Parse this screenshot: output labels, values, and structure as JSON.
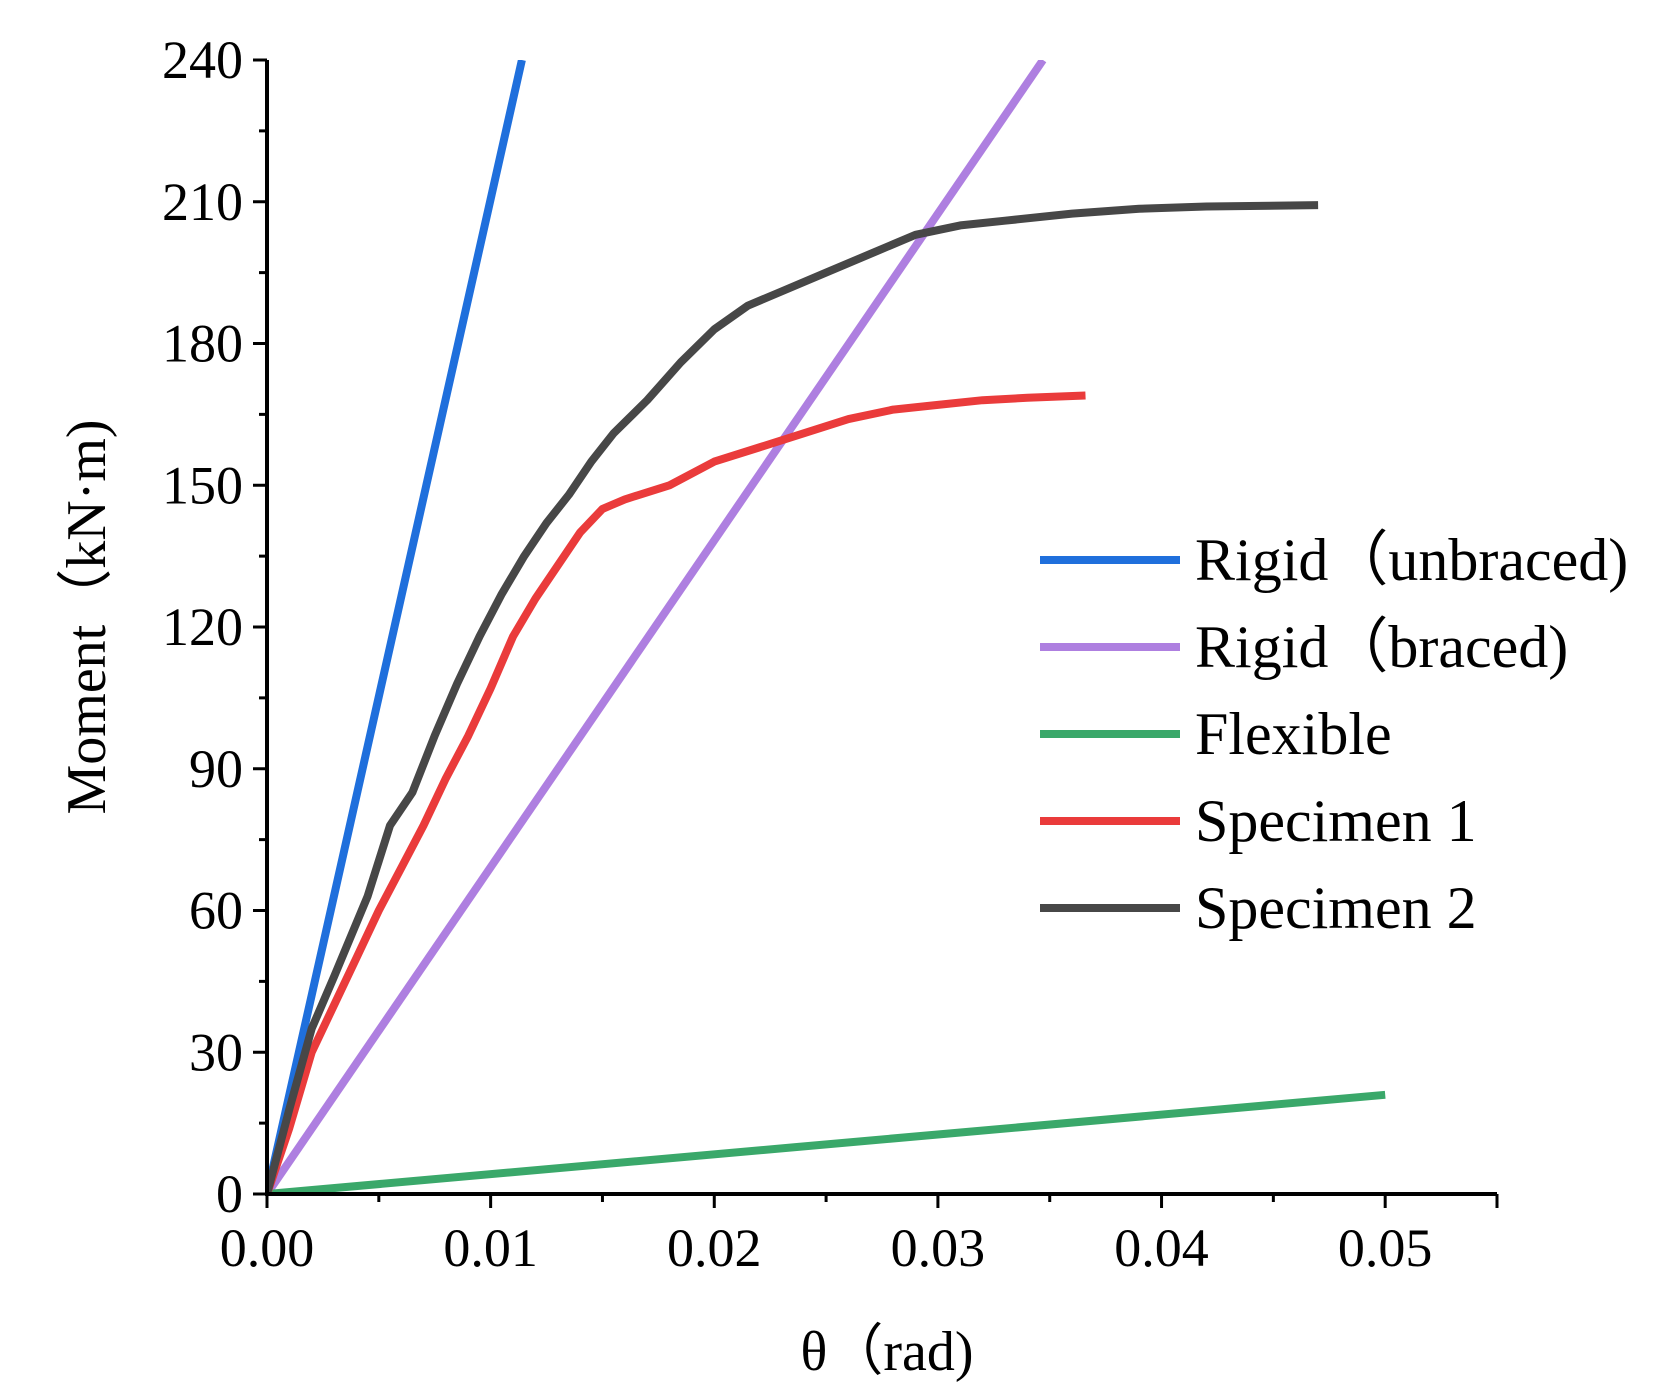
{
  "chart_data": {
    "type": "line",
    "title": "",
    "xlabel": "θ（rad)",
    "ylabel": "Moment（kN·m)",
    "xlim": [
      0,
      0.055
    ],
    "ylim": [
      0,
      240
    ],
    "xticks": [
      0,
      0.01,
      0.02,
      0.03,
      0.04,
      0.05
    ],
    "xtick_labels": [
      "0.00",
      "0.01",
      "0.02",
      "0.03",
      "0.04",
      "0.05"
    ],
    "yticks": [
      0,
      30,
      60,
      90,
      120,
      150,
      180,
      210,
      240
    ],
    "ytick_labels": [
      "0",
      "30",
      "60",
      "90",
      "120",
      "150",
      "180",
      "210",
      "240"
    ],
    "grid": false,
    "legend_position": "center-right",
    "series": [
      {
        "name": "Rigid（unbraced)",
        "color": "#1f6fdc",
        "x": [
          0,
          0.0114
        ],
        "y": [
          0,
          240
        ]
      },
      {
        "name": "Rigid（braced)",
        "color": "#ae7fe0",
        "x": [
          0,
          0.0347
        ],
        "y": [
          0,
          240
        ]
      },
      {
        "name": "Flexible",
        "color": "#3aa86a",
        "x": [
          0,
          0.05
        ],
        "y": [
          0,
          21
        ]
      },
      {
        "name": "Specimen 1",
        "color": "#ea3b3b",
        "x": [
          0,
          0.001,
          0.002,
          0.003,
          0.004,
          0.005,
          0.006,
          0.007,
          0.008,
          0.009,
          0.01,
          0.011,
          0.012,
          0.013,
          0.014,
          0.015,
          0.016,
          0.018,
          0.02,
          0.022,
          0.024,
          0.026,
          0.028,
          0.03,
          0.032,
          0.034,
          0.0366
        ],
        "y": [
          0,
          14,
          30,
          40,
          50,
          60,
          69,
          78,
          88,
          97,
          107,
          118,
          126,
          133,
          140,
          145,
          147,
          150,
          155,
          158,
          161,
          164,
          166,
          167,
          168,
          168.5,
          169
        ]
      },
      {
        "name": "Specimen 2",
        "color": "#474747",
        "x": [
          0,
          0.001,
          0.002,
          0.003,
          0.0045,
          0.0055,
          0.0065,
          0.0075,
          0.0085,
          0.0095,
          0.0105,
          0.0115,
          0.0125,
          0.0135,
          0.0145,
          0.0155,
          0.017,
          0.0185,
          0.02,
          0.0215,
          0.023,
          0.025,
          0.027,
          0.029,
          0.031,
          0.033,
          0.036,
          0.039,
          0.042,
          0.047
        ],
        "y": [
          0,
          18,
          35,
          46,
          63,
          78,
          85,
          97,
          108,
          118,
          127,
          135,
          142,
          148,
          155,
          161,
          168,
          176,
          183,
          188,
          191,
          195,
          199,
          203,
          205,
          206,
          207.5,
          208.5,
          209,
          209.3
        ]
      }
    ]
  }
}
